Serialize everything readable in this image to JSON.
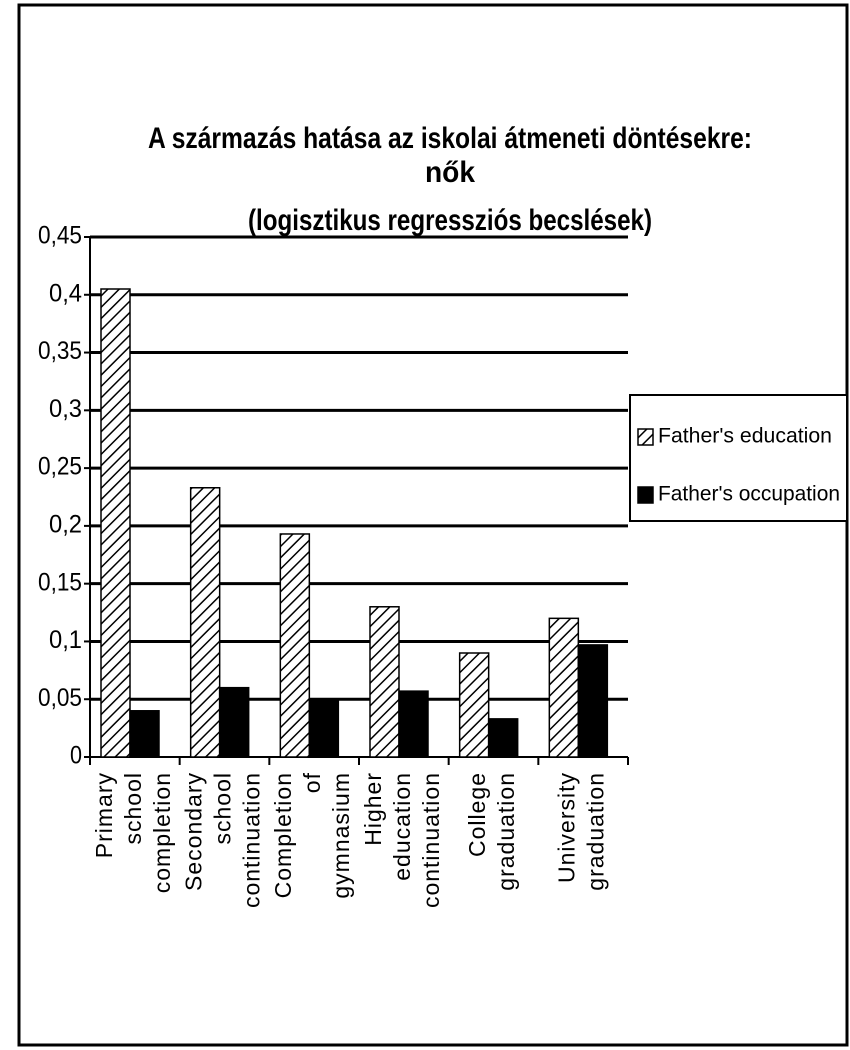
{
  "chart_data": {
    "type": "bar",
    "title": [
      "A származás hatása az iskolai átmeneti döntésekre:",
      "nők",
      "(logisztikus regressziós becslések)"
    ],
    "categories": [
      "Primary school completion",
      "Secondary school continuation",
      "Completion of gymnasium",
      "Higher education continuation",
      "College graduation",
      "University graduation"
    ],
    "series": [
      {
        "name": "Father's education",
        "color": "#000000",
        "pattern": "hatch",
        "values": [
          0.405,
          0.233,
          0.193,
          0.13,
          0.09,
          0.12
        ]
      },
      {
        "name": "Father's occupation",
        "color": "#000000",
        "values": [
          0.04,
          0.06,
          0.05,
          0.057,
          0.033,
          0.097
        ]
      }
    ],
    "ylim": [
      0,
      0.45
    ],
    "yticks": [
      0,
      {
        "value": 0.05,
        "label": "0,05"
      },
      {
        "value": 0.1,
        "label": "0,1"
      },
      {
        "value": 0.15,
        "label": "0,15"
      },
      {
        "value": 0.2,
        "label": "0,2"
      },
      {
        "value": 0.25,
        "label": "0,25"
      },
      {
        "value": 0.3,
        "label": "0,3"
      },
      {
        "value": 0.35,
        "label": "0,35"
      },
      {
        "value": 0.4,
        "label": "0,4"
      },
      {
        "value": 0.45,
        "label": "0,45"
      }
    ],
    "grid": true,
    "legend": "right"
  }
}
